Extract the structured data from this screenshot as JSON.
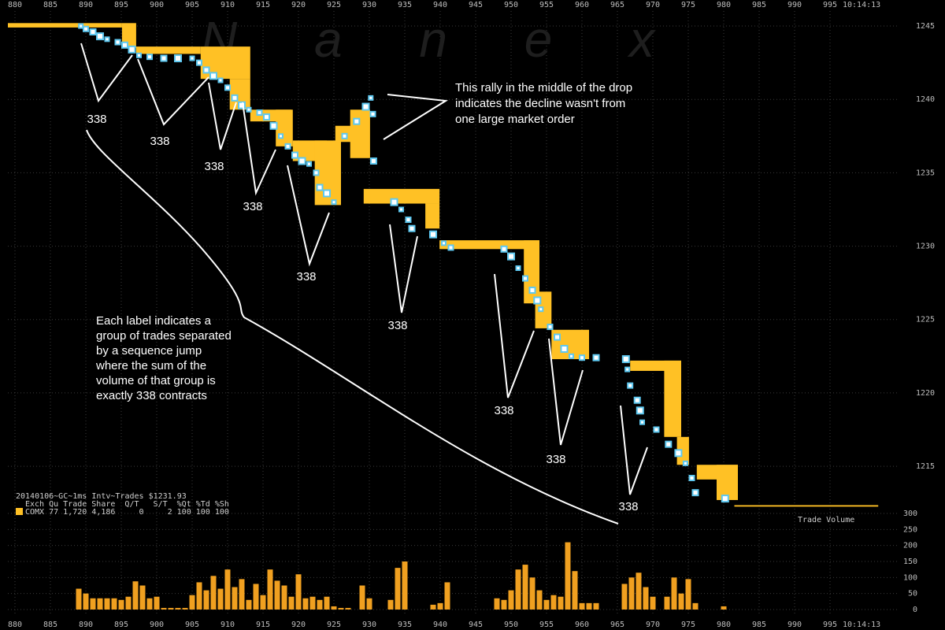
{
  "chart_data": [
    {
      "type": "scatter",
      "title": "20140106~GC~1ms Intv~Trades $1231.93",
      "watermark": "N a n e x",
      "time_label": "10:14:13",
      "legend_rows": [
        "Exch Qu Trade Share  Q/T   S/T  %Qt %Td %Sh",
        "COMX 77 1,720 4,186     0     2 100 100 100"
      ],
      "xlim": [
        879,
        1002
      ],
      "ylim": [
        1212,
        1245.7
      ],
      "xticks": [
        880,
        885,
        890,
        895,
        900,
        905,
        910,
        915,
        920,
        925,
        930,
        935,
        940,
        945,
        950,
        955,
        960,
        965,
        970,
        975,
        980,
        985,
        990,
        995
      ],
      "yticks": [
        1215,
        1220,
        1225,
        1230,
        1235,
        1240,
        1245
      ],
      "grid": true,
      "color": "#5ec8f0",
      "band_color": "#ffc125",
      "x": [
        889.3,
        890,
        891,
        892,
        893,
        894.5,
        895.5,
        896.5,
        897.5,
        899,
        901,
        903,
        905,
        906,
        907,
        908,
        909,
        910,
        911,
        912,
        913,
        914.5,
        915.5,
        916.5,
        917.5,
        918.5,
        919.5,
        920.5,
        921.5,
        922.5,
        923,
        924,
        925,
        926.5,
        928.2,
        929.5,
        930.2,
        930.5,
        930.6,
        933.5,
        934.5,
        935.5,
        936,
        939,
        940.5,
        941.5,
        949,
        950,
        951,
        952,
        953,
        953.7,
        954.2,
        955.5,
        956.5,
        957.5,
        958.5,
        960,
        962,
        966.2,
        966.4,
        966.8,
        967.8,
        968.2,
        968.5,
        970.5,
        972.2,
        973.6,
        974.6,
        975.5,
        976,
        980.2
      ],
      "y": [
        1245.0,
        1244.8,
        1244.6,
        1244.3,
        1244.1,
        1243.9,
        1243.7,
        1243.4,
        1243.0,
        1242.9,
        1242.8,
        1242.8,
        1242.8,
        1242.5,
        1242.0,
        1241.6,
        1241.3,
        1240.8,
        1240.1,
        1239.6,
        1239.3,
        1239.1,
        1238.8,
        1238.2,
        1237.5,
        1236.8,
        1236.2,
        1235.8,
        1235.6,
        1235.0,
        1234.0,
        1233.6,
        1233.0,
        1237.5,
        1238.5,
        1239.5,
        1240.1,
        1239.0,
        1235.8,
        1233.0,
        1232.5,
        1231.8,
        1231.2,
        1230.8,
        1230.2,
        1229.9,
        1229.8,
        1229.3,
        1228.5,
        1227.8,
        1227.0,
        1226.3,
        1225.7,
        1224.5,
        1223.8,
        1223.0,
        1222.5,
        1222.4,
        1222.4,
        1222.3,
        1221.6,
        1220.5,
        1219.5,
        1218.8,
        1218.0,
        1217.5,
        1216.5,
        1215.9,
        1215.2,
        1214.2,
        1213.2,
        1212.8
      ],
      "bands": [
        {
          "x": [
            879,
            895.1
          ],
          "range": [
            1244.9,
            1245.2
          ]
        },
        {
          "x": [
            895.1,
            897.1
          ],
          "range": [
            1243.5,
            1245.2
          ]
        },
        {
          "x": [
            897.1,
            906.2
          ],
          "range": [
            1243.1,
            1243.6
          ]
        },
        {
          "x": [
            906.2,
            913.2
          ],
          "range": [
            1241.4,
            1243.6
          ]
        },
        {
          "x": [
            910.3,
            913.2
          ],
          "range": [
            1239.3,
            1241.4
          ]
        },
        {
          "x": [
            913.2,
            919
          ],
          "range": [
            1238.5,
            1239.3
          ]
        },
        {
          "x": [
            916.8,
            919.2
          ],
          "range": [
            1236.8,
            1239.3
          ]
        },
        {
          "x": [
            919.2,
            924
          ],
          "range": [
            1235.8,
            1237.2
          ]
        },
        {
          "x": [
            922.3,
            926
          ],
          "range": [
            1232.8,
            1237.2
          ]
        },
        {
          "x": [
            925.2,
            929
          ],
          "range": [
            1237.1,
            1238.2
          ]
        },
        {
          "x": [
            927.3,
            930.1
          ],
          "range": [
            1236,
            1239.3
          ]
        },
        {
          "x": [
            929.2,
            939.9
          ],
          "range": [
            1232.9,
            1233.9
          ]
        },
        {
          "x": [
            937.9,
            939.9
          ],
          "range": [
            1231.2,
            1232.9
          ]
        },
        {
          "x": [
            939.9,
            954
          ],
          "range": [
            1229.8,
            1230.4
          ]
        },
        {
          "x": [
            951.8,
            954
          ],
          "range": [
            1226.1,
            1230.4
          ]
        },
        {
          "x": [
            953.4,
            955.7
          ],
          "range": [
            1224.4,
            1226.9
          ]
        },
        {
          "x": [
            955.7,
            961
          ],
          "range": [
            1222.3,
            1224.3
          ]
        },
        {
          "x": [
            966.8,
            974
          ],
          "range": [
            1221.5,
            1222.2
          ]
        },
        {
          "x": [
            971.6,
            974
          ],
          "range": [
            1217.0,
            1222.2
          ]
        },
        {
          "x": [
            973.4,
            975.1
          ],
          "range": [
            1215.1,
            1217.0
          ]
        },
        {
          "x": [
            976.2,
            982
          ],
          "range": [
            1214.1,
            1215.1
          ]
        },
        {
          "x": [
            979,
            982
          ],
          "range": [
            1212.7,
            1215.1
          ]
        },
        {
          "x": [
            981.5,
            1001.8
          ],
          "range": [
            1212.25,
            1212.35
          ]
        }
      ],
      "group_labels": [
        "338",
        "338",
        "338",
        "338",
        "338",
        "338",
        "338",
        "338",
        "338"
      ],
      "rally_note": [
        "This rally in the middle of the drop",
        "indicates the decline wasn't from",
        "one large market order"
      ],
      "group_note": [
        "Each label indicates a",
        "group of trades separated",
        "by a sequence jump",
        "where the sum of the",
        "volume of that group is",
        "exactly 338 contracts"
      ]
    },
    {
      "type": "bar",
      "label": "Trade Volume",
      "color": "#f0a020",
      "xlim": [
        879,
        1002
      ],
      "ylim": [
        0,
        300
      ],
      "yticks": [
        0,
        50,
        100,
        150,
        200,
        250,
        300
      ],
      "x": [
        889,
        890,
        891,
        892,
        893,
        894,
        895,
        896,
        897,
        898,
        899,
        900,
        901,
        902,
        903,
        904,
        905,
        906,
        907,
        908,
        909,
        910,
        911,
        912,
        913,
        914,
        915,
        916,
        917,
        918,
        919,
        920,
        921,
        922,
        923,
        924,
        925,
        926,
        927,
        928,
        929,
        930,
        931,
        932,
        933,
        934,
        935,
        936,
        937,
        938,
        939,
        940,
        941,
        942,
        943,
        944,
        945,
        946,
        947,
        948,
        949,
        950,
        951,
        952,
        953,
        954,
        955,
        956,
        957,
        958,
        959,
        960,
        961,
        962,
        963,
        964,
        965,
        966,
        967,
        968,
        969,
        970,
        971,
        972,
        973,
        974,
        975,
        976,
        977,
        978,
        979,
        980,
        981
      ],
      "values": [
        65,
        50,
        35,
        35,
        35,
        35,
        30,
        40,
        88,
        75,
        35,
        40,
        5,
        5,
        5,
        5,
        45,
        85,
        60,
        105,
        65,
        125,
        70,
        95,
        30,
        80,
        45,
        125,
        90,
        75,
        40,
        110,
        35,
        40,
        30,
        40,
        10,
        5,
        5,
        0,
        75,
        35,
        0,
        0,
        30,
        130,
        150,
        0,
        0,
        0,
        15,
        20,
        85,
        0,
        0,
        0,
        0,
        0,
        0,
        35,
        30,
        60,
        125,
        140,
        100,
        60,
        30,
        45,
        40,
        210,
        120,
        20,
        20,
        20,
        0,
        0,
        0,
        80,
        100,
        115,
        70,
        40,
        0,
        40,
        100,
        50,
        95,
        20,
        0,
        0,
        0,
        10,
        0
      ]
    }
  ]
}
